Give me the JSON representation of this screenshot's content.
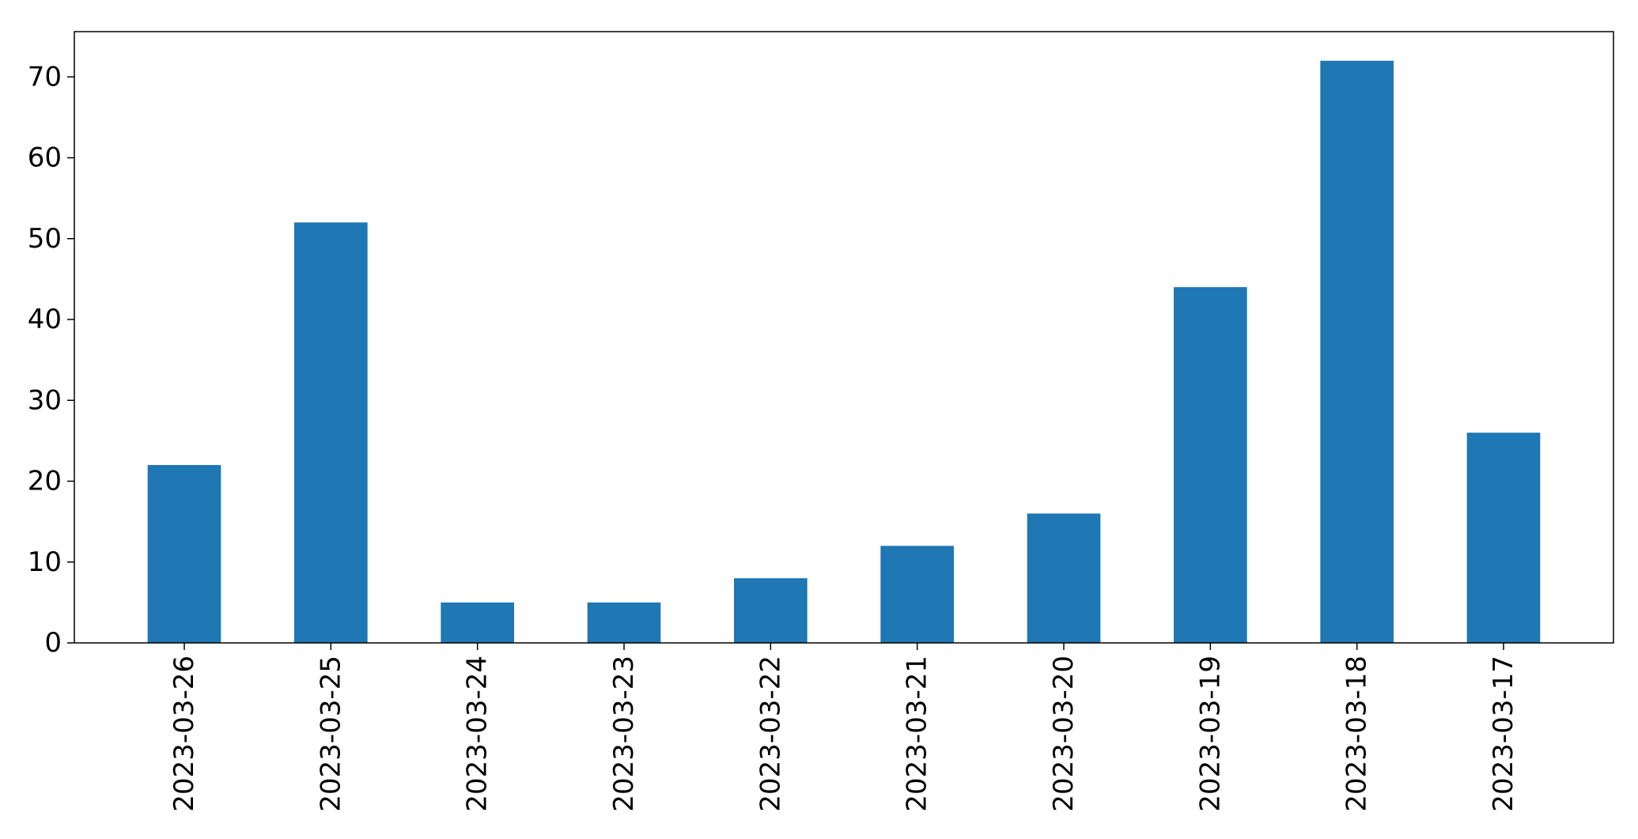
{
  "chart_data": {
    "type": "bar",
    "title": "",
    "xlabel": "",
    "ylabel": "",
    "categories": [
      "2023-03-26",
      "2023-03-25",
      "2023-03-24",
      "2023-03-23",
      "2023-03-22",
      "2023-03-21",
      "2023-03-20",
      "2023-03-19",
      "2023-03-18",
      "2023-03-17"
    ],
    "values": [
      22,
      52,
      5,
      5,
      8,
      12,
      16,
      44,
      72,
      26
    ],
    "ylim": [
      0,
      75.6
    ],
    "yticks": [
      0,
      10,
      20,
      30,
      40,
      50,
      60,
      70
    ],
    "grid": false,
    "legend": "none",
    "bar_color": "#1f77b4"
  }
}
